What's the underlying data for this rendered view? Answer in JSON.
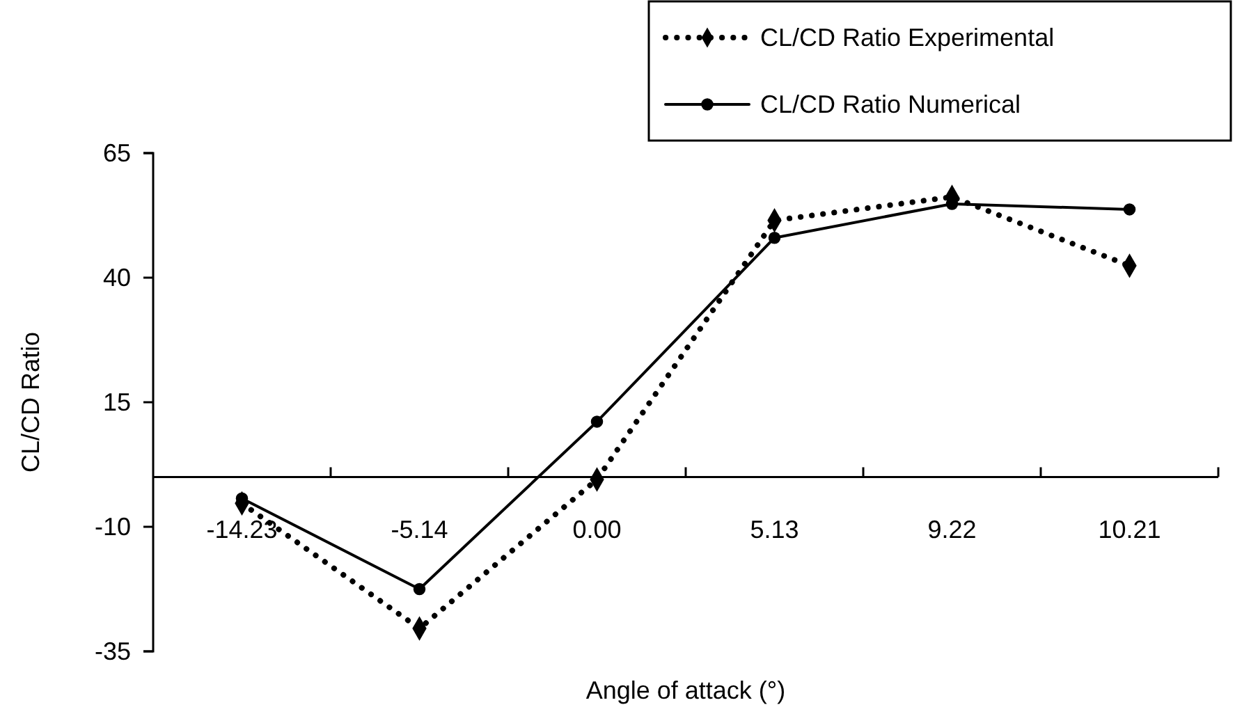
{
  "chart_data": {
    "type": "line",
    "xlabel": "Angle of attack (°)",
    "ylabel": "CL/CD Ratio",
    "categories": [
      "-14.23",
      "-5.14",
      "0.00",
      "5.13",
      "9.22",
      "10.21"
    ],
    "series": [
      {
        "name": "CL/CD Ratio Experimental",
        "color": "#000000",
        "marker": "diamond",
        "line_style": "dotted",
        "values": [
          -5.3,
          -30.4,
          -0.5,
          51.5,
          56.2,
          42.4
        ]
      },
      {
        "name": "CL/CD Ratio Numerical",
        "color": "#000000",
        "marker": "circle",
        "line_style": "solid",
        "values": [
          -4.3,
          -22.5,
          11.1,
          48.0,
          54.8,
          53.7
        ]
      }
    ],
    "ylim": [
      -35,
      65
    ],
    "yticks": [
      -35,
      -10,
      15,
      40,
      65
    ],
    "grid": false,
    "legend": "top right"
  }
}
